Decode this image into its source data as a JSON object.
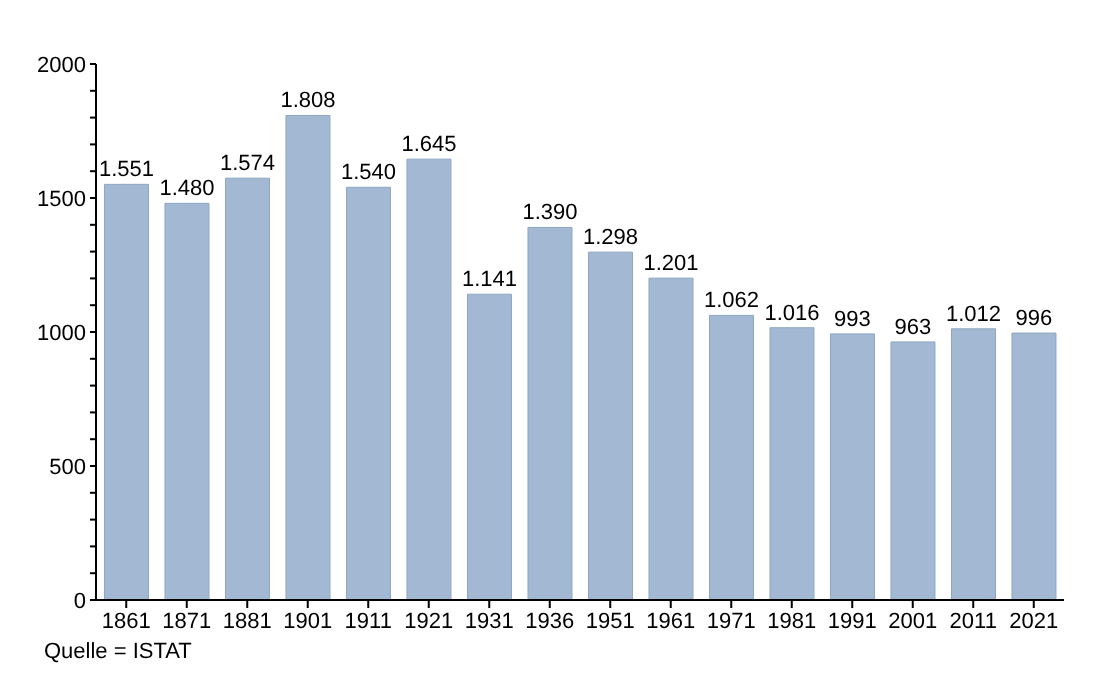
{
  "chart_data": {
    "type": "bar",
    "categories": [
      "1861",
      "1871",
      "1881",
      "1901",
      "1911",
      "1921",
      "1931",
      "1936",
      "1951",
      "1961",
      "1971",
      "1981",
      "1991",
      "2001",
      "2011",
      "2021"
    ],
    "values": [
      1551,
      1480,
      1574,
      1808,
      1540,
      1645,
      1141,
      1390,
      1298,
      1201,
      1062,
      1016,
      993,
      963,
      1012,
      996
    ],
    "value_labels": [
      "1.551",
      "1.480",
      "1.574",
      "1.808",
      "1.540",
      "1.645",
      "1.141",
      "1.390",
      "1.298",
      "1.201",
      "1.062",
      "1.016",
      "993",
      "963",
      "1.012",
      "996"
    ],
    "color": "#a3b9d3",
    "ylim": [
      0,
      2000
    ],
    "yticks": [
      0,
      {
        "value": 100,
        "label": null
      },
      {
        "value": 200,
        "label": null
      },
      {
        "value": 300,
        "label": null
      },
      {
        "value": 400,
        "label": null
      },
      500,
      {
        "value": 600,
        "label": null
      },
      {
        "value": 700,
        "label": null
      },
      {
        "value": 800,
        "label": null
      },
      {
        "value": 900,
        "label": null
      },
      1000,
      {
        "value": 1100,
        "label": null
      },
      {
        "value": 1200,
        "label": null
      },
      {
        "value": 1300,
        "label": null
      },
      {
        "value": 1400,
        "label": null
      },
      1500,
      {
        "value": 1600,
        "label": null
      },
      {
        "value": 1700,
        "label": null
      },
      {
        "value": 1800,
        "label": null
      },
      {
        "value": 1900,
        "label": null
      },
      2000
    ],
    "grid": false,
    "annotations": [
      "Quelle = ISTAT"
    ]
  }
}
